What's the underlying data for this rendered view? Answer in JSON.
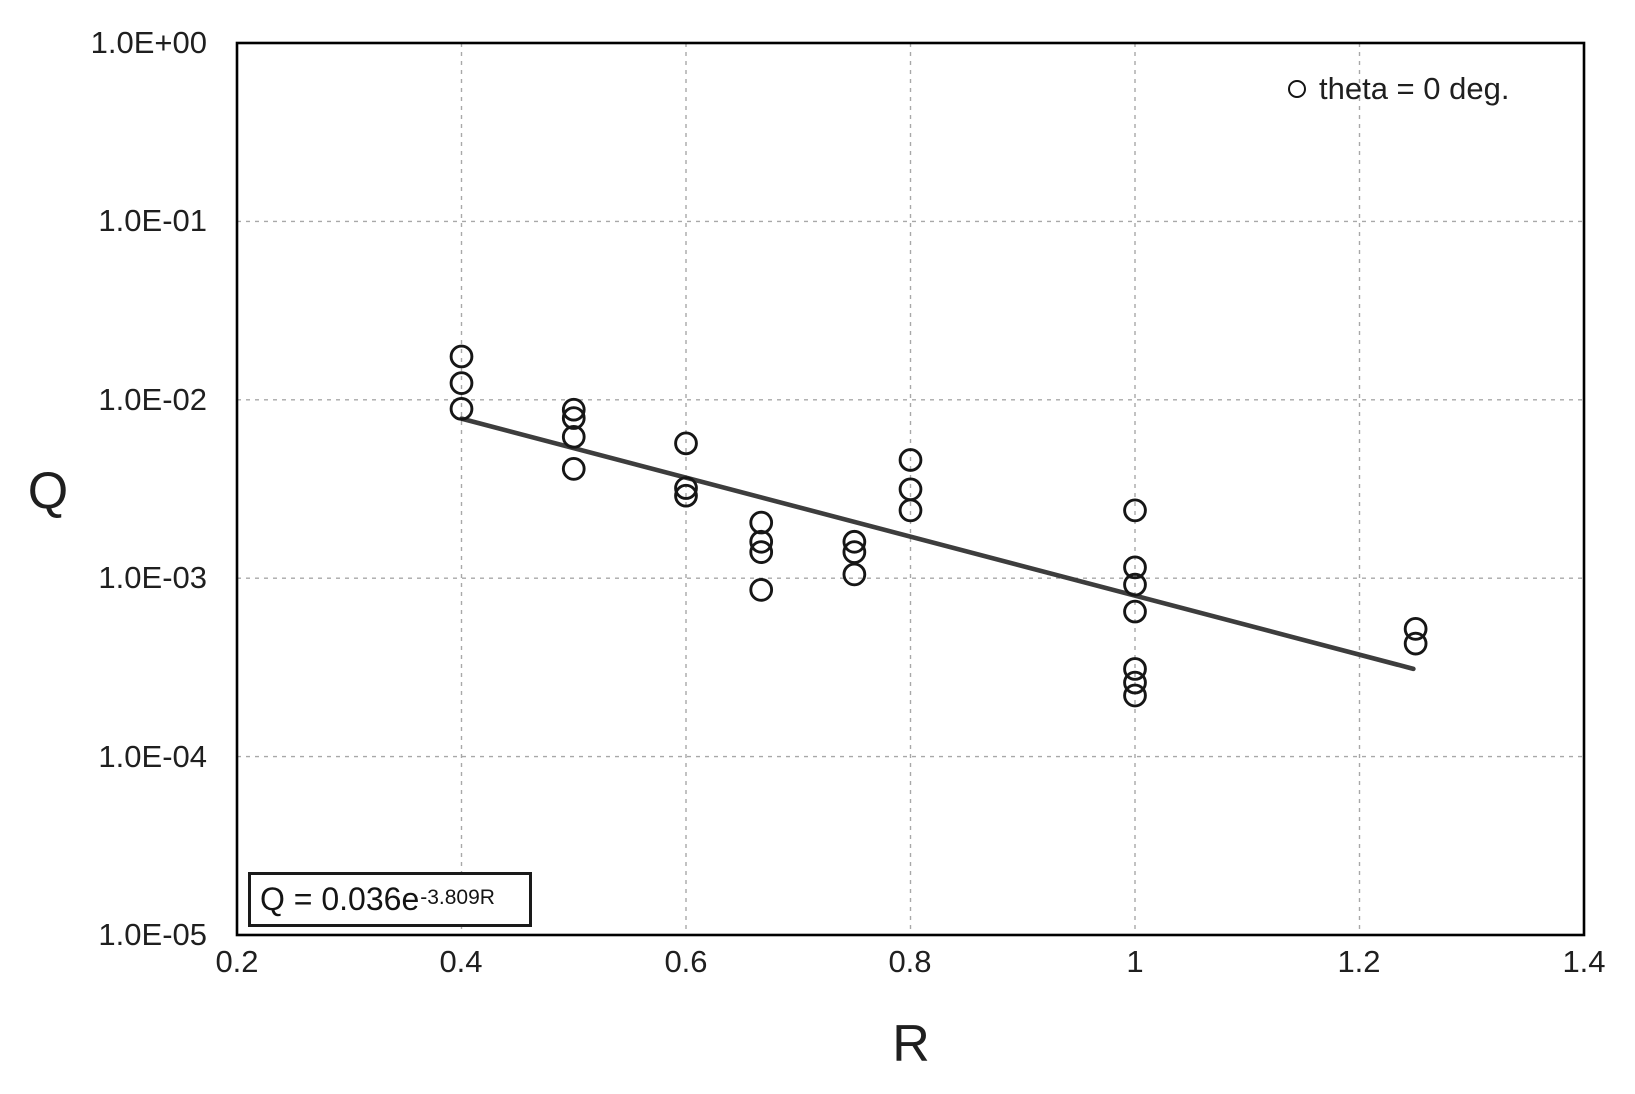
{
  "figure": {
    "legend": {
      "label": "theta = 0 deg."
    },
    "equation": {
      "base": "Q = 0.036e",
      "exponent": "-3.809R"
    },
    "y_axis": {
      "title": "Q",
      "tick_labels": [
        "1.0E+00",
        "1.0E-01",
        "1.0E-02",
        "1.0E-03",
        "1.0E-04",
        "1.0E-05"
      ]
    },
    "x_axis": {
      "title": "R",
      "tick_labels": [
        "0.2",
        "0.4",
        "0.6",
        "0.8",
        "1",
        "1.2",
        "1.4"
      ]
    }
  },
  "chart_data": {
    "type": "scatter",
    "title": "",
    "xlabel": "R",
    "ylabel": "Q",
    "x_scale": "linear",
    "y_scale": "log",
    "xlim": [
      0.2,
      1.4
    ],
    "ylim": [
      1e-05,
      1
    ],
    "x_ticks": [
      0.2,
      0.4,
      0.6,
      0.8,
      1.0,
      1.2,
      1.4
    ],
    "y_ticks": [
      1,
      0.1,
      0.01,
      0.001,
      0.0001,
      1e-05
    ],
    "grid": "dashed-both-axes",
    "legend_position": "top-right-inside",
    "series": [
      {
        "name": "theta = 0 deg.",
        "marker": "open-circle",
        "points": [
          [
            0.4,
            0.0175
          ],
          [
            0.4,
            0.0124
          ],
          [
            0.4,
            0.0089
          ],
          [
            0.5,
            0.0088
          ],
          [
            0.5,
            0.0079
          ],
          [
            0.5,
            0.0062
          ],
          [
            0.5,
            0.0041
          ],
          [
            0.6,
            0.0057
          ],
          [
            0.6,
            0.0032
          ],
          [
            0.6,
            0.0029
          ],
          [
            0.667,
            0.00205
          ],
          [
            0.667,
            0.0016
          ],
          [
            0.667,
            0.0014
          ],
          [
            0.667,
            0.00086
          ],
          [
            0.75,
            0.0016
          ],
          [
            0.75,
            0.0014
          ],
          [
            0.75,
            0.00105
          ],
          [
            0.8,
            0.0046
          ],
          [
            0.8,
            0.00315
          ],
          [
            0.8,
            0.0024
          ],
          [
            1.0,
            0.0024
          ],
          [
            1.0,
            0.00115
          ],
          [
            1.0,
            0.00092
          ],
          [
            1.0,
            0.00065
          ],
          [
            1.0,
            0.00031
          ],
          [
            1.0,
            0.00026
          ],
          [
            1.0,
            0.00022
          ],
          [
            1.25,
            0.00052
          ],
          [
            1.25,
            0.00043
          ]
        ]
      }
    ],
    "trendline": {
      "equation": "Q = 0.036e^(-3.809R)",
      "coefficient": 0.036,
      "exponent_rate": -3.809,
      "x_start": 0.4,
      "x_end": 1.248
    },
    "style": {
      "marker_color": "#161616",
      "trendline_color": "#3d3d3d",
      "grid_color": "#a8a8a8",
      "border_color": "#000000",
      "text_color": "#1f1f1f",
      "background": "#ffffff"
    }
  }
}
